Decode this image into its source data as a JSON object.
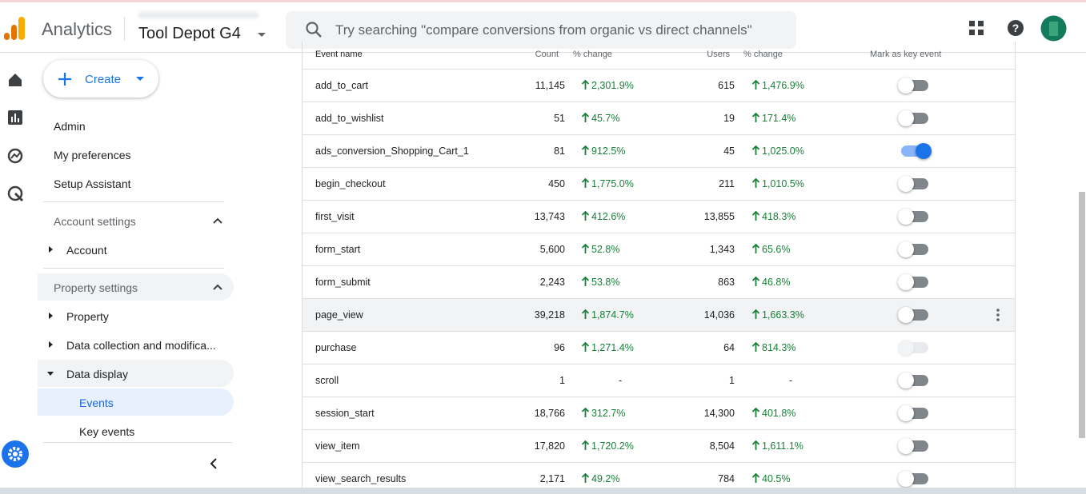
{
  "header": {
    "app_name": "Analytics",
    "account": "Tool Depot G4",
    "search_placeholder": "Try searching \"compare conversions from organic vs direct channels\""
  },
  "sidebar": {
    "create": "Create",
    "items": [
      "Admin",
      "My preferences",
      "Setup Assistant"
    ],
    "account_settings": {
      "title": "Account settings",
      "items": [
        "Account"
      ]
    },
    "property_settings": {
      "title": "Property settings",
      "items": [
        "Property",
        "Data collection and modifica...",
        "Data display"
      ],
      "sub_items": [
        "Events",
        "Key events"
      ],
      "selected": "Events"
    }
  },
  "table": {
    "columns": [
      "Event name",
      "Count",
      "% change",
      "Users",
      "% change",
      "Mark as key event"
    ],
    "rows": [
      {
        "name": "add_to_cart",
        "count": "11,145",
        "count_change": {
          "text": "2,301.9%",
          "trend": "up"
        },
        "users": "615",
        "users_change": {
          "text": "1,476.9%",
          "trend": "up"
        },
        "key_event": "off"
      },
      {
        "name": "add_to_wishlist",
        "count": "51",
        "count_change": {
          "text": "45.7%",
          "trend": "up"
        },
        "users": "19",
        "users_change": {
          "text": "171.4%",
          "trend": "up"
        },
        "key_event": "off"
      },
      {
        "name": "ads_conversion_Shopping_Cart_1",
        "count": "81",
        "count_change": {
          "text": "912.5%",
          "trend": "up"
        },
        "users": "45",
        "users_change": {
          "text": "1,025.0%",
          "trend": "up"
        },
        "key_event": "on"
      },
      {
        "name": "begin_checkout",
        "count": "450",
        "count_change": {
          "text": "1,775.0%",
          "trend": "up"
        },
        "users": "211",
        "users_change": {
          "text": "1,010.5%",
          "trend": "up"
        },
        "key_event": "off"
      },
      {
        "name": "first_visit",
        "count": "13,743",
        "count_change": {
          "text": "412.6%",
          "trend": "up"
        },
        "users": "13,855",
        "users_change": {
          "text": "418.3%",
          "trend": "up"
        },
        "key_event": "off"
      },
      {
        "name": "form_start",
        "count": "5,600",
        "count_change": {
          "text": "52.8%",
          "trend": "up"
        },
        "users": "1,343",
        "users_change": {
          "text": "65.6%",
          "trend": "up"
        },
        "key_event": "off"
      },
      {
        "name": "form_submit",
        "count": "2,243",
        "count_change": {
          "text": "53.8%",
          "trend": "up"
        },
        "users": "863",
        "users_change": {
          "text": "46.8%",
          "trend": "up"
        },
        "key_event": "off"
      },
      {
        "name": "page_view",
        "count": "39,218",
        "count_change": {
          "text": "1,874.7%",
          "trend": "up"
        },
        "users": "14,036",
        "users_change": {
          "text": "1,663.3%",
          "trend": "up"
        },
        "key_event": "off",
        "hovered": true
      },
      {
        "name": "purchase",
        "count": "96",
        "count_change": {
          "text": "1,271.4%",
          "trend": "up"
        },
        "users": "64",
        "users_change": {
          "text": "814.3%",
          "trend": "up"
        },
        "key_event": "disabled"
      },
      {
        "name": "scroll",
        "count": "1",
        "count_change": {
          "text": "-"
        },
        "users": "1",
        "users_change": {
          "text": "-"
        },
        "key_event": "off"
      },
      {
        "name": "session_start",
        "count": "18,766",
        "count_change": {
          "text": "312.7%",
          "trend": "up"
        },
        "users": "14,300",
        "users_change": {
          "text": "401.8%",
          "trend": "up"
        },
        "key_event": "off"
      },
      {
        "name": "view_item",
        "count": "17,820",
        "count_change": {
          "text": "1,720.2%",
          "trend": "up"
        },
        "users": "8,504",
        "users_change": {
          "text": "1,611.1%",
          "trend": "up"
        },
        "key_event": "off"
      },
      {
        "name": "view_search_results",
        "count": "2,171",
        "count_change": {
          "text": "49.2%",
          "trend": "up"
        },
        "users": "784",
        "users_change": {
          "text": "40.5%",
          "trend": "up"
        },
        "key_event": "off"
      }
    ]
  }
}
